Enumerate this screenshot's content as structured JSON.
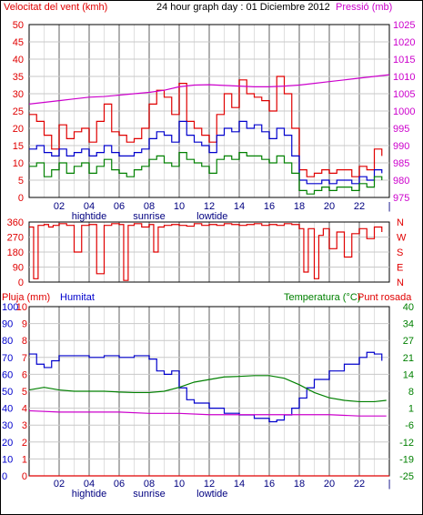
{
  "header": {
    "left": "Velocitat del vent (kmh)",
    "center": "24 hour graph day : 01 Diciembre 2012",
    "right": "Pressió (mb)"
  },
  "colors": {
    "wind": "#e00000",
    "avgwind": "#0000cc",
    "gust": "#008000",
    "pressure": "#cc00cc",
    "dir": "#e00000",
    "hum": "#0000cc",
    "temp": "#008000",
    "dew": "#cc00cc",
    "rain": "#e00000",
    "grid": "#c0c0c0",
    "frame": "#000000"
  },
  "x_labels": [
    "02",
    "04",
    "06",
    "08",
    "10",
    "12",
    "14",
    "16",
    "18",
    "20",
    "22",
    "|"
  ],
  "tide_labels": [
    "hightide",
    "sunrise",
    "lowtide"
  ],
  "chart_data": [
    {
      "type": "line",
      "name": "wind-panel",
      "ylabel": "Velocitat del vent (kmh)",
      "y2label": "Pressió (mb)",
      "ylim": [
        0,
        50
      ],
      "y2lim": [
        975,
        1025
      ],
      "yticks": [
        "50",
        "45",
        "40",
        "35",
        "30",
        "25",
        "20",
        "15",
        "10",
        "5",
        "0"
      ],
      "y2ticks": [
        "1025",
        "1020",
        "1015",
        "1010",
        "1005",
        "1000",
        "995",
        "990",
        "985",
        "980",
        "975"
      ],
      "xlim": [
        0,
        24
      ],
      "series": [
        {
          "key": "wind",
          "x": [
            0,
            0.5,
            1,
            1.5,
            2,
            2.5,
            3,
            3.5,
            4,
            4.5,
            5,
            5.5,
            6,
            6.5,
            7,
            7.5,
            8,
            8.5,
            9,
            9.5,
            10,
            10.5,
            11,
            11.5,
            12,
            12.5,
            13,
            13.5,
            14,
            14.5,
            15,
            15.5,
            16,
            16.5,
            17,
            17.5,
            18,
            18.5,
            19,
            19.5,
            20,
            20.5,
            21,
            21.5,
            22,
            22.5,
            23,
            23.5
          ],
          "y": [
            24,
            22,
            18,
            14,
            21,
            17,
            19,
            20,
            16,
            22,
            27,
            19,
            18,
            16,
            17,
            20,
            27,
            31,
            29,
            24,
            33,
            22,
            20,
            18,
            16,
            24,
            30,
            26,
            34,
            30,
            29,
            28,
            25,
            35,
            30,
            20,
            8,
            6,
            7,
            8,
            7,
            8,
            8,
            6,
            9,
            8,
            14,
            12
          ]
        },
        {
          "key": "avgwind",
          "x": [
            0,
            0.5,
            1,
            1.5,
            2,
            2.5,
            3,
            3.5,
            4,
            4.5,
            5,
            5.5,
            6,
            6.5,
            7,
            7.5,
            8,
            8.5,
            9,
            9.5,
            10,
            10.5,
            11,
            11.5,
            12,
            12.5,
            13,
            13.5,
            14,
            14.5,
            15,
            15.5,
            16,
            16.5,
            17,
            17.5,
            18,
            18.5,
            19,
            19.5,
            20,
            20.5,
            21,
            21.5,
            22,
            22.5,
            23,
            23.5
          ],
          "y": [
            14,
            15,
            13,
            12,
            14,
            12,
            13,
            14,
            12,
            13,
            15,
            13,
            12,
            12,
            13,
            14,
            17,
            19,
            18,
            16,
            22,
            18,
            16,
            15,
            13,
            18,
            20,
            19,
            22,
            20,
            21,
            19,
            17,
            20,
            18,
            12,
            5,
            4,
            4,
            5,
            4,
            5,
            5,
            4,
            6,
            5,
            8,
            7
          ]
        },
        {
          "key": "gust",
          "x": [
            0,
            0.5,
            1,
            1.5,
            2,
            2.5,
            3,
            3.5,
            4,
            4.5,
            5,
            5.5,
            6,
            6.5,
            7,
            7.5,
            8,
            8.5,
            9,
            9.5,
            10,
            10.5,
            11,
            11.5,
            12,
            12.5,
            13,
            13.5,
            14,
            14.5,
            15,
            15.5,
            16,
            16.5,
            17,
            17.5,
            18,
            18.5,
            19,
            19.5,
            20,
            20.5,
            21,
            21.5,
            22,
            22.5,
            23,
            23.5
          ],
          "y": [
            9,
            10,
            6,
            8,
            10,
            7,
            9,
            10,
            7,
            9,
            11,
            8,
            7,
            6,
            8,
            9,
            11,
            12,
            10,
            9,
            13,
            11,
            10,
            9,
            7,
            11,
            12,
            11,
            13,
            12,
            12,
            11,
            10,
            12,
            10,
            7,
            2,
            1,
            2,
            3,
            2,
            3,
            3,
            2,
            4,
            3,
            6,
            5
          ]
        },
        {
          "key": "pressure",
          "axis": "y2",
          "x": [
            0,
            1,
            2,
            3,
            4,
            5,
            6,
            7,
            8,
            9,
            10,
            11,
            12,
            13,
            14,
            15,
            16,
            17,
            18,
            19,
            20,
            21,
            22,
            23,
            24
          ],
          "y": [
            1002,
            1002.5,
            1003,
            1003.5,
            1004,
            1004.2,
            1004.6,
            1005,
            1005.4,
            1006,
            1007,
            1007.5,
            1007.6,
            1007.4,
            1007.2,
            1007,
            1007,
            1007.2,
            1007.5,
            1008,
            1008.5,
            1009,
            1009.5,
            1010,
            1010.5
          ]
        }
      ]
    },
    {
      "type": "line",
      "name": "direction-panel",
      "ylim": [
        0,
        360
      ],
      "yticks": [
        "360",
        "270",
        "180",
        "90",
        "0"
      ],
      "y2ticks": [
        "N",
        "W",
        "S",
        "E",
        "N"
      ],
      "xlim": [
        0,
        24
      ],
      "series": [
        {
          "key": "dir",
          "x": [
            0,
            0.3,
            0.6,
            1,
            1.3,
            1.6,
            2,
            2.5,
            3,
            3.5,
            4,
            4.5,
            5,
            5.5,
            6,
            6.3,
            6.6,
            7,
            7.5,
            8,
            8.3,
            8.6,
            9,
            9.5,
            10,
            10.5,
            11,
            11.5,
            12,
            12.5,
            13,
            13.5,
            14,
            14.5,
            15,
            15.5,
            16,
            16.5,
            17,
            17.5,
            18,
            18.3,
            18.6,
            19,
            19.3,
            19.6,
            20,
            20.5,
            21,
            21.5,
            22,
            22.5,
            23,
            23.5
          ],
          "y": [
            330,
            20,
            340,
            345,
            330,
            340,
            350,
            340,
            180,
            340,
            345,
            50,
            340,
            350,
            345,
            10,
            340,
            350,
            330,
            345,
            180,
            330,
            340,
            345,
            340,
            335,
            350,
            340,
            345,
            340,
            350,
            345,
            340,
            345,
            350,
            340,
            345,
            340,
            350,
            345,
            320,
            60,
            320,
            20,
            280,
            320,
            200,
            300,
            150,
            290,
            320,
            260,
            330,
            300
          ]
        }
      ]
    },
    {
      "type": "line",
      "name": "humidity-panel",
      "ylabel": "Pluja (mm)",
      "hum_label": "Humitat",
      "y2label": "Temperatura (°C)",
      "dew_label": "Punt rosada",
      "ylim": [
        0,
        100
      ],
      "rain_ticks": [
        "10",
        "9",
        "8",
        "7",
        "6",
        "5",
        "4",
        "3",
        "2",
        "1",
        "0"
      ],
      "hum_ticks": [
        "100",
        "90",
        "80",
        "70",
        "60",
        "50",
        "40",
        "30",
        "20",
        "10",
        "0"
      ],
      "temp_ticks": [
        "40",
        "34",
        "27",
        "21",
        "14",
        "8",
        "1",
        "-6",
        "-12",
        "-19",
        "-25"
      ],
      "ylim_temp": [
        -25,
        40
      ],
      "xlim": [
        0,
        24
      ],
      "series": [
        {
          "key": "hum",
          "x": [
            0,
            0.5,
            1,
            1.5,
            2,
            3,
            4,
            5,
            6,
            7,
            8,
            8.5,
            9,
            9.5,
            10,
            10.5,
            11,
            12,
            13,
            14,
            15,
            16,
            16.5,
            17,
            17.5,
            18,
            18.5,
            19,
            20,
            21,
            22,
            22.5,
            23,
            23.5
          ],
          "y": [
            72,
            66,
            64,
            68,
            71,
            71,
            70,
            71,
            70,
            71,
            69,
            62,
            60,
            62,
            52,
            45,
            43,
            40,
            37,
            36,
            34,
            32,
            33,
            36,
            40,
            46,
            52,
            57,
            62,
            66,
            70,
            73,
            72,
            68
          ]
        },
        {
          "key": "temp",
          "axis": "temp",
          "x": [
            0,
            1,
            2,
            3,
            4,
            5,
            6,
            7,
            8,
            9,
            10,
            11,
            12,
            13,
            14,
            15,
            16,
            17,
            18,
            19,
            20,
            21,
            22,
            23,
            23.8
          ],
          "y": [
            8,
            9,
            8,
            7.5,
            7.5,
            7.5,
            7.2,
            7,
            7,
            7.5,
            9,
            11,
            12,
            13,
            13.2,
            13.5,
            13.5,
            12.5,
            10,
            7,
            5,
            4,
            3.5,
            3.5,
            4
          ]
        },
        {
          "key": "dew",
          "axis": "temp",
          "x": [
            0,
            2,
            4,
            6,
            8,
            10,
            12,
            14,
            16,
            18,
            20,
            22,
            23.8
          ],
          "y": [
            0,
            -0.5,
            -0.5,
            -0.5,
            -1,
            -1,
            -1.5,
            -1.5,
            -1.5,
            -1.5,
            -1.5,
            -2,
            -2
          ]
        },
        {
          "key": "rain",
          "x": [
            0,
            24
          ],
          "y": [
            0,
            0
          ]
        }
      ]
    }
  ]
}
